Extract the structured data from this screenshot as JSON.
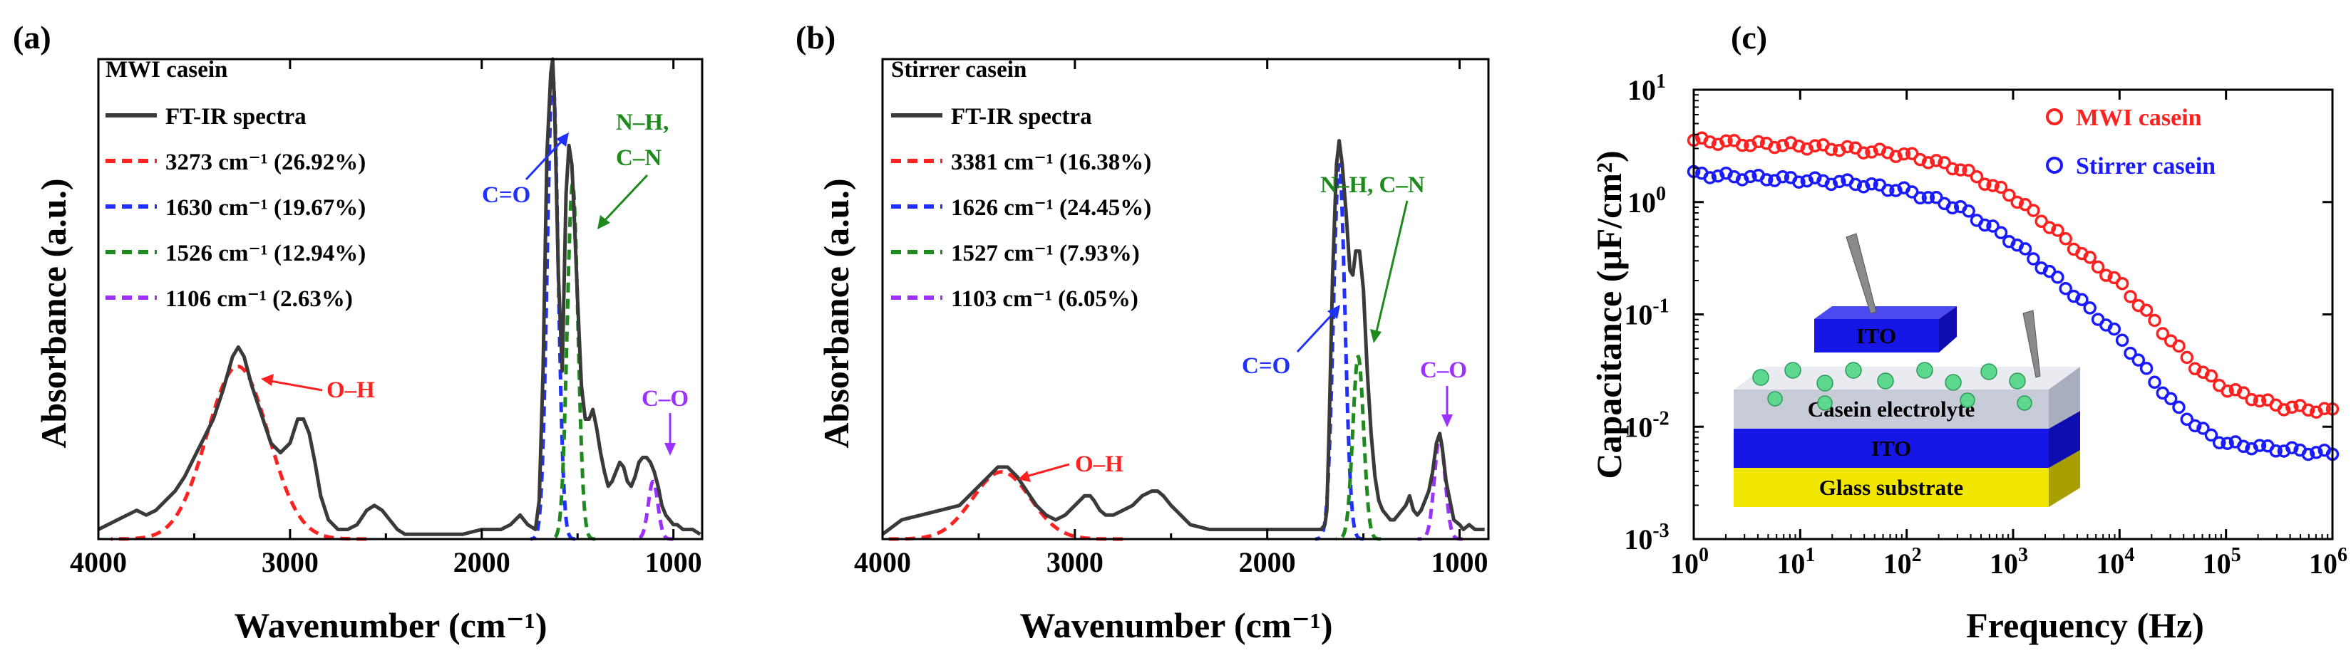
{
  "figure": {
    "description": "Three-panel scientific figure: FT-IR spectra of MWI casein and stirrer casein with Gaussian deconvolution, and capacitance vs frequency"
  },
  "chart_data": [
    {
      "type": "line",
      "panel_label": "(a)",
      "title": "MWI casein",
      "xlabel": "Wavenumber (cm⁻¹)",
      "ylabel": "Absorbance (a.u.)",
      "xlim": [
        4000,
        850
      ],
      "x_reversed": true,
      "xticks": [
        4000,
        3000,
        2000,
        1000
      ],
      "ylim": [
        0,
        1
      ],
      "yticks_shown": false,
      "series": [
        {
          "name": "FT-IR spectra",
          "color": "#3a3a3a",
          "style": "solid",
          "x": [
            4000,
            3900,
            3850,
            3800,
            3750,
            3700,
            3650,
            3600,
            3550,
            3500,
            3450,
            3400,
            3350,
            3300,
            3270,
            3240,
            3200,
            3150,
            3100,
            3050,
            3000,
            2960,
            2930,
            2900,
            2870,
            2840,
            2800,
            2750,
            2700,
            2650,
            2600,
            2560,
            2520,
            2480,
            2440,
            2400,
            2300,
            2200,
            2100,
            2000,
            1950,
            1900,
            1850,
            1800,
            1760,
            1720,
            1700,
            1680,
            1660,
            1640,
            1630,
            1620,
            1600,
            1580,
            1560,
            1545,
            1530,
            1520,
            1500,
            1480,
            1460,
            1440,
            1420,
            1400,
            1380,
            1360,
            1340,
            1320,
            1300,
            1280,
            1260,
            1240,
            1220,
            1200,
            1180,
            1160,
            1140,
            1120,
            1100,
            1080,
            1060,
            1040,
            1020,
            1000,
            980,
            950,
            900,
            860
          ],
          "y": [
            0.02,
            0.04,
            0.05,
            0.06,
            0.05,
            0.06,
            0.08,
            0.1,
            0.13,
            0.17,
            0.21,
            0.25,
            0.31,
            0.38,
            0.4,
            0.38,
            0.32,
            0.26,
            0.2,
            0.18,
            0.2,
            0.25,
            0.25,
            0.22,
            0.16,
            0.09,
            0.04,
            0.02,
            0.02,
            0.03,
            0.06,
            0.07,
            0.06,
            0.04,
            0.02,
            0.01,
            0.01,
            0.01,
            0.01,
            0.02,
            0.02,
            0.02,
            0.03,
            0.05,
            0.03,
            0.02,
            0.08,
            0.35,
            0.8,
            0.97,
            1.0,
            0.9,
            0.55,
            0.35,
            0.72,
            0.82,
            0.78,
            0.7,
            0.5,
            0.32,
            0.25,
            0.25,
            0.27,
            0.23,
            0.18,
            0.14,
            0.11,
            0.12,
            0.14,
            0.16,
            0.15,
            0.12,
            0.11,
            0.13,
            0.16,
            0.17,
            0.17,
            0.16,
            0.14,
            0.11,
            0.07,
            0.05,
            0.04,
            0.03,
            0.03,
            0.02,
            0.02,
            0.01
          ]
        },
        {
          "name": "3273 cm⁻¹ (26.92%)",
          "color": "#ff2020",
          "style": "dashed",
          "gaussian": {
            "center": 3273,
            "height": 0.36,
            "sigma": 160
          }
        },
        {
          "name": "1630 cm⁻¹ (19.67%)",
          "color": "#2030ff",
          "style": "dashed",
          "gaussian": {
            "center": 1630,
            "height": 0.97,
            "sigma": 28
          }
        },
        {
          "name": "1526 cm⁻¹ (12.94%)",
          "color": "#1e8a1e",
          "style": "dashed",
          "gaussian": {
            "center": 1526,
            "height": 0.74,
            "sigma": 28
          }
        },
        {
          "name": "1106 cm⁻¹ (2.63%)",
          "color": "#9b30ff",
          "style": "dashed",
          "gaussian": {
            "center": 1106,
            "height": 0.12,
            "sigma": 25
          }
        }
      ],
      "annotations": [
        {
          "text": "O–H",
          "color": "#ff2020"
        },
        {
          "text": "C=O",
          "color": "#2030ff"
        },
        {
          "text": "N–H,",
          "color": "#1e8a1e"
        },
        {
          "text": "C–N",
          "color": "#1e8a1e"
        },
        {
          "text": "C–O",
          "color": "#9b30ff"
        }
      ]
    },
    {
      "type": "line",
      "panel_label": "(b)",
      "title": "Stirrer casein",
      "xlabel": "Wavenumber (cm⁻¹)",
      "ylabel": "Absorbance (a.u.)",
      "xlim": [
        4000,
        850
      ],
      "x_reversed": true,
      "xticks": [
        4000,
        3000,
        2000,
        1000
      ],
      "ylim": [
        0,
        1
      ],
      "yticks_shown": false,
      "series": [
        {
          "name": "FT-IR spectra",
          "color": "#3a3a3a",
          "style": "solid",
          "x": [
            4000,
            3900,
            3800,
            3700,
            3600,
            3550,
            3500,
            3450,
            3400,
            3350,
            3300,
            3250,
            3200,
            3150,
            3100,
            3050,
            3000,
            2950,
            2920,
            2900,
            2870,
            2840,
            2800,
            2750,
            2700,
            2650,
            2600,
            2570,
            2540,
            2500,
            2450,
            2400,
            2300,
            2200,
            2100,
            2000,
            1900,
            1800,
            1750,
            1720,
            1700,
            1690,
            1680,
            1660,
            1640,
            1626,
            1610,
            1590,
            1570,
            1555,
            1540,
            1520,
            1500,
            1480,
            1460,
            1440,
            1420,
            1400,
            1380,
            1360,
            1340,
            1320,
            1300,
            1280,
            1260,
            1240,
            1220,
            1200,
            1180,
            1160,
            1140,
            1120,
            1103,
            1090,
            1070,
            1050,
            1030,
            1000,
            980,
            950,
            920,
            900,
            870
          ],
          "y": [
            0.01,
            0.04,
            0.05,
            0.06,
            0.07,
            0.09,
            0.11,
            0.13,
            0.15,
            0.15,
            0.13,
            0.1,
            0.07,
            0.05,
            0.04,
            0.05,
            0.07,
            0.09,
            0.09,
            0.08,
            0.06,
            0.05,
            0.05,
            0.06,
            0.07,
            0.09,
            0.1,
            0.1,
            0.09,
            0.07,
            0.05,
            0.03,
            0.02,
            0.02,
            0.02,
            0.02,
            0.02,
            0.02,
            0.02,
            0.02,
            0.03,
            0.06,
            0.2,
            0.55,
            0.78,
            0.83,
            0.78,
            0.68,
            0.56,
            0.55,
            0.6,
            0.6,
            0.52,
            0.35,
            0.22,
            0.13,
            0.08,
            0.06,
            0.05,
            0.04,
            0.04,
            0.05,
            0.06,
            0.07,
            0.09,
            0.06,
            0.05,
            0.06,
            0.08,
            0.1,
            0.14,
            0.2,
            0.22,
            0.19,
            0.12,
            0.08,
            0.04,
            0.03,
            0.02,
            0.03,
            0.02,
            0.02,
            0.02
          ]
        },
        {
          "name": "3381 cm⁻¹ (16.38%)",
          "color": "#ff2020",
          "style": "dashed",
          "gaussian": {
            "center": 3381,
            "height": 0.14,
            "sigma": 150
          }
        },
        {
          "name": "1626 cm⁻¹ (24.45%)",
          "color": "#2030ff",
          "style": "dashed",
          "gaussian": {
            "center": 1626,
            "height": 0.78,
            "sigma": 30
          }
        },
        {
          "name": "1527 cm⁻¹ (7.93%)",
          "color": "#1e8a1e",
          "style": "dashed",
          "gaussian": {
            "center": 1527,
            "height": 0.38,
            "sigma": 28
          }
        },
        {
          "name": "1103 cm⁻¹ (6.05%)",
          "color": "#9b30ff",
          "style": "dashed",
          "gaussian": {
            "center": 1103,
            "height": 0.21,
            "sigma": 28
          }
        }
      ],
      "annotations": [
        {
          "text": "O–H",
          "color": "#ff2020"
        },
        {
          "text": "C=O",
          "color": "#2030ff"
        },
        {
          "text": "N–H, C–N",
          "color": "#1e8a1e"
        },
        {
          "text": "C–O",
          "color": "#9b30ff"
        }
      ]
    },
    {
      "type": "scatter",
      "panel_label": "(c)",
      "title": "",
      "xlabel": "Frequency (Hz)",
      "ylabel": "Capacitance (μF/cm²)",
      "xscale": "log",
      "yscale": "log",
      "xlim": [
        1,
        1000000
      ],
      "ylim": [
        0.001,
        10
      ],
      "xtick_labels": [
        [
          "10",
          "0"
        ],
        [
          "10",
          "1"
        ],
        [
          "10",
          "2"
        ],
        [
          "10",
          "3"
        ],
        [
          "10",
          "4"
        ],
        [
          "10",
          "5"
        ],
        [
          "10",
          "6"
        ]
      ],
      "ytick_labels": [
        [
          "10",
          "-3"
        ],
        [
          "10",
          "-2"
        ],
        [
          "10",
          "-1"
        ],
        [
          "10",
          "0"
        ],
        [
          "10",
          "1"
        ]
      ],
      "legend_position": "top-right",
      "series": [
        {
          "name": "MWI casein",
          "color": "#ff2020",
          "marker": "open-circle",
          "logf": [
            0,
            0.5,
            1,
            1.5,
            2,
            2.5,
            3,
            3.25,
            3.5,
            3.75,
            4,
            4.25,
            4.5,
            4.75,
            5,
            5.5,
            6
          ],
          "logC": [
            0.55,
            0.52,
            0.5,
            0.47,
            0.42,
            0.3,
            0.05,
            -0.14,
            -0.34,
            -0.54,
            -0.72,
            -0.98,
            -1.25,
            -1.5,
            -1.66,
            -1.82,
            -1.86
          ]
        },
        {
          "name": "Stirrer casein",
          "color": "#1a1aff",
          "marker": "open-circle",
          "logf": [
            0,
            0.5,
            1,
            1.5,
            2,
            2.5,
            3,
            3.25,
            3.5,
            3.75,
            4,
            4.25,
            4.5,
            4.75,
            5,
            5.5,
            6
          ],
          "logC": [
            0.25,
            0.22,
            0.2,
            0.17,
            0.1,
            -0.05,
            -0.35,
            -0.55,
            -0.76,
            -0.98,
            -1.2,
            -1.5,
            -1.79,
            -2.02,
            -2.15,
            -2.2,
            -2.24
          ]
        }
      ],
      "inset": {
        "labels": [
          "ITO",
          "Casein electrolyte",
          "ITO",
          "Glass substrate"
        ],
        "colors": {
          "ito": "#1616e6",
          "glass": "#f0e600",
          "electrolyte": "#c8ccd8",
          "particle": "#5fd88f"
        }
      }
    }
  ]
}
